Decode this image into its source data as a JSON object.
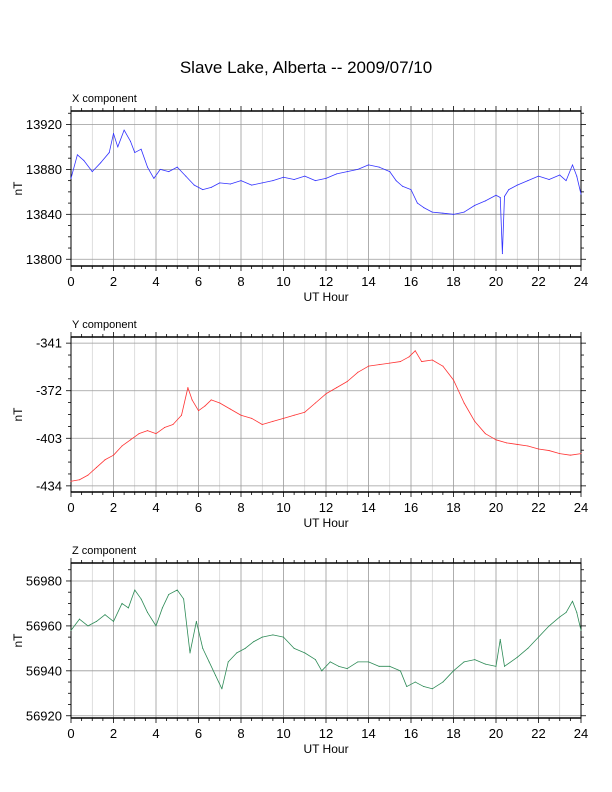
{
  "title": "Slave Lake, Alberta -- 2009/07/10",
  "chart_data": [
    {
      "type": "line",
      "title": "X component",
      "xlabel": "UT Hour",
      "ylabel": "nT",
      "xlim": [
        0,
        24
      ],
      "ylim": [
        13794,
        13932
      ],
      "xticks": [
        0,
        2,
        4,
        6,
        8,
        10,
        12,
        14,
        16,
        18,
        20,
        22,
        24
      ],
      "yticks": [
        13800,
        13840,
        13880,
        13920
      ],
      "grid": true,
      "color": "#3333ff",
      "series": [
        {
          "x": [
            0,
            0.3,
            0.6,
            1.0,
            1.4,
            1.8,
            2.0,
            2.2,
            2.5,
            2.8,
            3.0,
            3.3,
            3.6,
            3.9,
            4.2,
            4.6,
            5.0,
            5.4,
            5.8,
            6.2,
            6.6,
            7.0,
            7.5,
            8.0,
            8.5,
            9.0,
            9.5,
            10.0,
            10.5,
            11.0,
            11.5,
            12.0,
            12.5,
            13.0,
            13.5,
            14.0,
            14.5,
            15.0,
            15.3,
            15.6,
            16.0,
            16.3,
            16.6,
            17.0,
            17.5,
            18.0,
            18.5,
            19.0,
            19.5,
            20.0,
            20.2,
            20.3,
            20.4,
            20.6,
            21.0,
            21.5,
            22.0,
            22.5,
            23.0,
            23.3,
            23.6,
            23.8,
            24.0
          ],
          "y": [
            13872,
            13893,
            13888,
            13878,
            13886,
            13895,
            13912,
            13900,
            13915,
            13905,
            13895,
            13898,
            13882,
            13872,
            13880,
            13878,
            13882,
            13874,
            13866,
            13862,
            13864,
            13868,
            13867,
            13870,
            13866,
            13868,
            13870,
            13873,
            13871,
            13874,
            13870,
            13872,
            13876,
            13878,
            13880,
            13884,
            13882,
            13878,
            13870,
            13865,
            13862,
            13850,
            13846,
            13842,
            13841,
            13840,
            13842,
            13848,
            13852,
            13857,
            13855,
            13805,
            13856,
            13862,
            13866,
            13870,
            13874,
            13871,
            13875,
            13870,
            13884,
            13874,
            13858
          ]
        }
      ]
    },
    {
      "type": "line",
      "title": "Y component",
      "xlabel": "UT Hour",
      "ylabel": "nT",
      "xlim": [
        0,
        24
      ],
      "ylim": [
        -438,
        -337
      ],
      "xticks": [
        0,
        2,
        4,
        6,
        8,
        10,
        12,
        14,
        16,
        18,
        20,
        22,
        24
      ],
      "yticks": [
        -341,
        -372,
        -403,
        -434
      ],
      "grid": true,
      "color": "#ff3333",
      "series": [
        {
          "x": [
            0,
            0.4,
            0.8,
            1.2,
            1.6,
            2.0,
            2.4,
            2.8,
            3.2,
            3.6,
            4.0,
            4.4,
            4.8,
            5.2,
            5.5,
            5.7,
            6.0,
            6.3,
            6.6,
            7.0,
            7.5,
            8.0,
            8.5,
            9.0,
            9.5,
            10.0,
            10.5,
            11.0,
            11.5,
            12.0,
            12.5,
            13.0,
            13.5,
            14.0,
            14.5,
            15.0,
            15.5,
            15.9,
            16.2,
            16.5,
            17.0,
            17.5,
            18.0,
            18.5,
            19.0,
            19.5,
            20.0,
            20.5,
            21.0,
            21.5,
            22.0,
            22.5,
            23.0,
            23.5,
            24.0
          ],
          "y": [
            -431,
            -430,
            -427,
            -422,
            -417,
            -414,
            -408,
            -404,
            -400,
            -398,
            -400,
            -396,
            -394,
            -388,
            -370,
            -378,
            -385,
            -382,
            -378,
            -380,
            -384,
            -388,
            -390,
            -394,
            -392,
            -390,
            -388,
            -386,
            -380,
            -374,
            -370,
            -366,
            -360,
            -356,
            -355,
            -354,
            -353,
            -350,
            -346,
            -353,
            -352,
            -356,
            -365,
            -380,
            -392,
            -400,
            -404,
            -406,
            -407,
            -408,
            -410,
            -411,
            -413,
            -414,
            -413
          ]
        }
      ]
    },
    {
      "type": "line",
      "title": "Z component",
      "xlabel": "UT Hour",
      "ylabel": "nT",
      "xlim": [
        0,
        24
      ],
      "ylim": [
        56919,
        56988
      ],
      "xticks": [
        0,
        2,
        4,
        6,
        8,
        10,
        12,
        14,
        16,
        18,
        20,
        22,
        24
      ],
      "yticks": [
        56920,
        56940,
        56960,
        56980
      ],
      "grid": true,
      "color": "#2e8b57",
      "series": [
        {
          "x": [
            0,
            0.4,
            0.8,
            1.2,
            1.6,
            2.0,
            2.4,
            2.7,
            3.0,
            3.3,
            3.6,
            4.0,
            4.3,
            4.6,
            5.0,
            5.3,
            5.6,
            5.9,
            6.2,
            6.5,
            6.8,
            7.1,
            7.4,
            7.8,
            8.2,
            8.6,
            9.0,
            9.5,
            10.0,
            10.5,
            11.0,
            11.5,
            11.8,
            12.2,
            12.6,
            13.0,
            13.5,
            14.0,
            14.5,
            15.0,
            15.5,
            15.8,
            16.2,
            16.6,
            17.0,
            17.5,
            18.0,
            18.5,
            19.0,
            19.5,
            20.0,
            20.2,
            20.4,
            21.0,
            21.5,
            22.0,
            22.5,
            23.0,
            23.3,
            23.6,
            23.8,
            24.0
          ],
          "y": [
            56958,
            56963,
            56960,
            56962,
            56965,
            56962,
            56970,
            56968,
            56976,
            56972,
            56966,
            56960,
            56968,
            56974,
            56976,
            56972,
            56948,
            56962,
            56950,
            56944,
            56938,
            56932,
            56944,
            56948,
            56950,
            56953,
            56955,
            56956,
            56955,
            56950,
            56948,
            56945,
            56940,
            56944,
            56942,
            56941,
            56944,
            56944,
            56942,
            56942,
            56940,
            56933,
            56935,
            56933,
            56932,
            56935,
            56940,
            56944,
            56945,
            56943,
            56942,
            56954,
            56942,
            56946,
            56950,
            56955,
            56960,
            56964,
            56966,
            56971,
            56966,
            56958
          ]
        }
      ]
    }
  ]
}
